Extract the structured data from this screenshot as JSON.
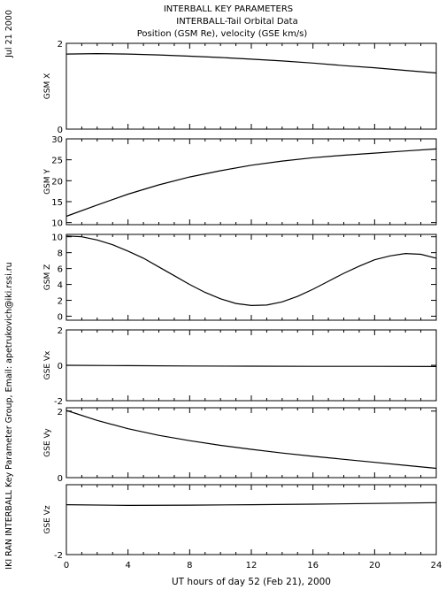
{
  "header": {
    "title_lines": [
      "INTERBALL KEY PARAMETERS",
      "INTERBALL-Tail Orbital Data",
      "Position (GSM Re), velocity (GSE km/s)"
    ],
    "date_label": "Jul 21 2000",
    "credit": "IKI RAN INTERBALL Key Parameter Group, Email: apetrukovich@iki.rssi.ru"
  },
  "chart_data": {
    "type": "line",
    "xlabel": "UT hours of day  52 (Feb 21), 2000",
    "xlim": [
      0,
      24
    ],
    "x_ticks": [
      0,
      4,
      8,
      12,
      16,
      20,
      24
    ],
    "x_tick_labels": [
      "0",
      "4",
      "8",
      "12",
      "16",
      "20",
      "24"
    ],
    "panels": [
      {
        "ylabel": "GSM X",
        "ylim": [
          0,
          2
        ],
        "y_tick_labels": [
          {
            "v": 0,
            "t": "0"
          },
          {
            "v": 2,
            "t": "2"
          }
        ],
        "x": [
          0,
          2,
          4,
          6,
          8,
          10,
          12,
          14,
          16,
          18,
          20,
          22,
          24
        ],
        "y": [
          1.75,
          1.76,
          1.75,
          1.73,
          1.7,
          1.67,
          1.63,
          1.59,
          1.54,
          1.48,
          1.43,
          1.37,
          1.31
        ]
      },
      {
        "ylabel": "GSM Y",
        "ylim": [
          9.5,
          30
        ],
        "y_tick_labels": [
          {
            "v": 10,
            "t": "10"
          },
          {
            "v": 15,
            "t": "15"
          },
          {
            "v": 20,
            "t": "20"
          },
          {
            "v": 25,
            "t": "25"
          },
          {
            "v": 30,
            "t": "30"
          }
        ],
        "x": [
          0,
          2,
          4,
          6,
          8,
          10,
          12,
          14,
          16,
          18,
          20,
          22,
          24
        ],
        "y": [
          11.5,
          14.2,
          16.8,
          19.0,
          20.9,
          22.4,
          23.7,
          24.7,
          25.5,
          26.1,
          26.6,
          27.1,
          27.6
        ]
      },
      {
        "ylabel": "GSM Z",
        "ylim": [
          -0.5,
          10.3
        ],
        "y_tick_labels": [
          {
            "v": 0,
            "t": "0"
          },
          {
            "v": 2,
            "t": "2"
          },
          {
            "v": 4,
            "t": "4"
          },
          {
            "v": 6,
            "t": "6"
          },
          {
            "v": 8,
            "t": "8"
          },
          {
            "v": 10,
            "t": "10"
          }
        ],
        "x": [
          0,
          1,
          2,
          3,
          4,
          5,
          6,
          7,
          8,
          9,
          10,
          11,
          12,
          13,
          14,
          15,
          16,
          17,
          18,
          19,
          20,
          21,
          22,
          23,
          24
        ],
        "y": [
          10.1,
          10.0,
          9.6,
          9.0,
          8.2,
          7.3,
          6.2,
          5.1,
          4.0,
          3.0,
          2.2,
          1.6,
          1.35,
          1.4,
          1.8,
          2.5,
          3.4,
          4.4,
          5.4,
          6.3,
          7.1,
          7.6,
          7.9,
          7.8,
          7.3
        ]
      },
      {
        "ylabel": "GSE Vx",
        "ylim": [
          -2,
          2
        ],
        "y_tick_labels": [
          {
            "v": -2,
            "t": "-2"
          },
          {
            "v": 0,
            "t": "0"
          },
          {
            "v": 2,
            "t": "2"
          }
        ],
        "x": [
          0,
          4,
          8,
          12,
          16,
          20,
          24
        ],
        "y": [
          0.0,
          -0.02,
          -0.04,
          -0.05,
          -0.06,
          -0.06,
          -0.07
        ]
      },
      {
        "ylabel": "GSE Vy",
        "ylim": [
          0,
          2.1
        ],
        "y_tick_labels": [
          {
            "v": 0,
            "t": "0"
          },
          {
            "v": 2,
            "t": "2"
          }
        ],
        "x": [
          0,
          2,
          4,
          6,
          8,
          10,
          12,
          14,
          16,
          18,
          20,
          22,
          24
        ],
        "y": [
          2.02,
          1.72,
          1.47,
          1.27,
          1.11,
          0.97,
          0.85,
          0.74,
          0.64,
          0.55,
          0.46,
          0.37,
          0.28
        ]
      },
      {
        "ylabel": "GSE Vz",
        "ylim": [
          -2,
          0.8
        ],
        "y_tick_labels": [
          {
            "v": -2,
            "t": "-2"
          }
        ],
        "x": [
          0,
          4,
          8,
          12,
          16,
          20,
          24
        ],
        "y": [
          0.0,
          -0.03,
          -0.02,
          0.0,
          0.02,
          0.05,
          0.08
        ]
      }
    ]
  },
  "colors": {
    "axes": "#000000",
    "line": "#000000",
    "background": "#ffffff"
  }
}
